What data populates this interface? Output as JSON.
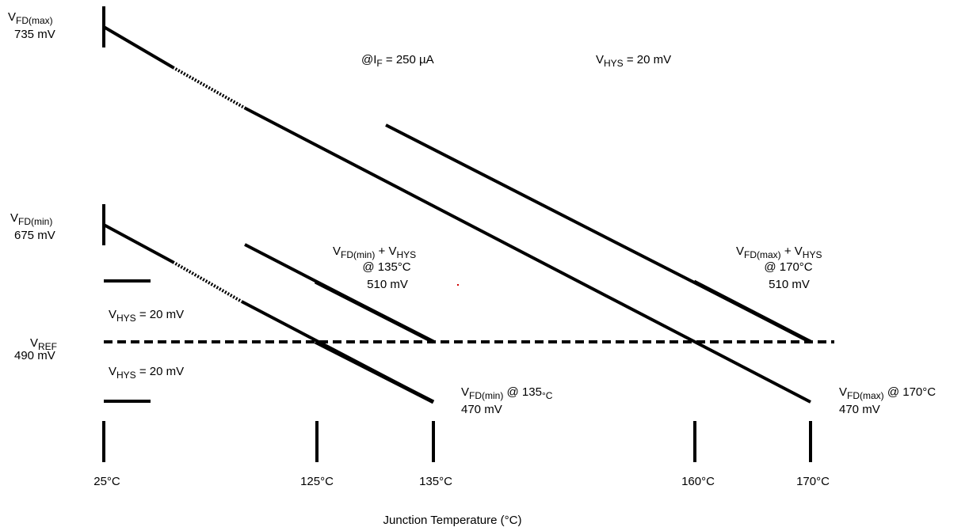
{
  "colors": {
    "ink": "#000000",
    "background": "#ffffff",
    "marker": "#d00000"
  },
  "labels": {
    "vfd_max": {
      "v": "V",
      "sub": "FD(max)",
      "value": "735 mV"
    },
    "vfd_min": {
      "v": "V",
      "sub": "FD(min)",
      "value": "675 mV"
    },
    "vref": {
      "v": "V",
      "sub": "REF",
      "value": "490 mV"
    },
    "vhys_upper": {
      "v": "V",
      "sub": "HYS",
      "rest": " = 20 mV"
    },
    "vhys_lower": {
      "v": "V",
      "sub": "HYS",
      "rest": " = 20 mV"
    },
    "vhys_top": {
      "v": "V",
      "sub": "HYS",
      "rest": " = 20 mV"
    },
    "if_condition": {
      "prefix": "@I",
      "sub": "F",
      "rest": " = 250 µA"
    },
    "min_plus_hys": {
      "v1": "V",
      "sub1": "FD(min)",
      "plus": " + V",
      "sub2": "HYS",
      "at": "@ 135°C",
      "value": "510 mV"
    },
    "max_plus_hys": {
      "v1": "V",
      "sub1": "FD(max)",
      "plus": " + V",
      "sub2": "HYS",
      "at": "@ 170°C",
      "value": "510 mV"
    },
    "min_at_135": {
      "v": "V",
      "sub": "FD(min)",
      "at": " @ 135",
      "unit": "°C",
      "value": "470 mV"
    },
    "max_at_170": {
      "v": "V",
      "sub": "FD(max)",
      "at": " @ 170°C",
      "value": "470 mV"
    }
  },
  "temperature_ticks": [
    "25°C",
    "125°C",
    "135°C",
    "160°C",
    "170°C"
  ],
  "x_axis_title": "Junction Temperature (°C)"
}
